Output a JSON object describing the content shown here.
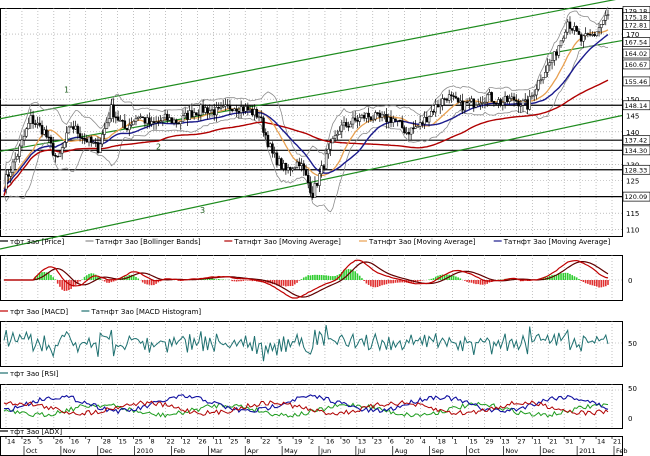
{
  "colors": {
    "background": "#ffffff",
    "frame": "#000000",
    "grid": "#9a9a9a",
    "price_candles": "#000000",
    "bollinger": "#8c8c8c",
    "ma_fast": "#e8a050",
    "ma_mid": "#1a1a8c",
    "ma_slow": "#b00000",
    "trend_channel": "#1e8c1e",
    "macd_line": "#c00000",
    "macd_signal": "#600000",
    "macd_hist_pos": "#2ecc2e",
    "macd_hist_neg": "#e03030",
    "rsi_line": "#1e7070",
    "adx_line": "#b00000",
    "di_plus": "#1e9c1e",
    "di_minus": "#1010a0",
    "level_box_fill": "#ffffff",
    "level_box_text": "#000000"
  },
  "chart_data": [
    {
      "type": "line",
      "panel": "price",
      "chart_kind": "candlestick with overlays",
      "y_axis_side": "right",
      "ylim": [
        108,
        178
      ],
      "y_ticks": [
        {
          "value": 110,
          "label": "110"
        },
        {
          "value": 115,
          "label": "115"
        },
        {
          "value": 125,
          "label": "125"
        },
        {
          "value": 130,
          "label": "130"
        },
        {
          "value": 140,
          "label": "140"
        },
        {
          "value": 145,
          "label": "145"
        },
        {
          "value": 150,
          "label": "150"
        },
        {
          "value": 170,
          "label": "170"
        }
      ],
      "level_boxes": [
        {
          "value": 179.18,
          "label": "179.18"
        },
        {
          "value": 175.18,
          "label": "175.18"
        },
        {
          "value": 172.81,
          "label": "172.81"
        },
        {
          "value": 167.54,
          "label": "167.54"
        },
        {
          "value": 164.02,
          "label": "164.02"
        },
        {
          "value": 160.67,
          "label": "160.67"
        },
        {
          "value": 155.46,
          "label": "155.46"
        },
        {
          "value": 148.14,
          "label": "148.14"
        },
        {
          "value": 137.42,
          "label": "137.42"
        },
        {
          "value": 134.3,
          "label": "134.30"
        },
        {
          "value": 128.33,
          "label": "128.33"
        },
        {
          "value": 120.09,
          "label": "120.09"
        }
      ],
      "horizontal_levels": [
        148.14,
        137.42,
        134.3,
        128.33,
        120.09
      ],
      "channel_labels": [
        "1",
        "2",
        "3"
      ],
      "close_series": [
        {
          "date": "Sep-14",
          "close": 124
        },
        {
          "date": "Sep-25",
          "close": 133
        },
        {
          "date": "Oct-05",
          "close": 144
        },
        {
          "date": "Oct-14",
          "close": 140
        },
        {
          "date": "Oct-26",
          "close": 131
        },
        {
          "date": "Nov-05",
          "close": 142
        },
        {
          "date": "Nov-16",
          "close": 138
        },
        {
          "date": "Nov-27",
          "close": 135
        },
        {
          "date": "Dec-07",
          "close": 147
        },
        {
          "date": "Dec-16",
          "close": 141
        },
        {
          "date": "Dec-28",
          "close": 145
        },
        {
          "date": "Jan-11",
          "close": 142
        },
        {
          "date": "Jan-25",
          "close": 144
        },
        {
          "date": "Feb-08",
          "close": 143
        },
        {
          "date": "Feb-18",
          "close": 146
        },
        {
          "date": "Mar-01",
          "close": 147
        },
        {
          "date": "Mar-15",
          "close": 146
        },
        {
          "date": "Mar-29",
          "close": 148
        },
        {
          "date": "Apr-12",
          "close": 147
        },
        {
          "date": "Apr-26",
          "close": 145
        },
        {
          "date": "May-06",
          "close": 133
        },
        {
          "date": "May-11",
          "close": 128
        },
        {
          "date": "May-17",
          "close": 131
        },
        {
          "date": "May-25",
          "close": 121
        },
        {
          "date": "Jun-07",
          "close": 132
        },
        {
          "date": "Jun-21",
          "close": 141
        },
        {
          "date": "Jul-02",
          "close": 143
        },
        {
          "date": "Jul-16",
          "close": 145
        },
        {
          "date": "Jul-30",
          "close": 144
        },
        {
          "date": "Aug-13",
          "close": 144
        },
        {
          "date": "Aug-23",
          "close": 140
        },
        {
          "date": "Sep-06",
          "close": 142
        },
        {
          "date": "Sep-20",
          "close": 147
        },
        {
          "date": "Oct-04",
          "close": 151
        },
        {
          "date": "Oct-18",
          "close": 148
        },
        {
          "date": "Nov-01",
          "close": 149
        },
        {
          "date": "Nov-15",
          "close": 151
        },
        {
          "date": "Nov-29",
          "close": 149
        },
        {
          "date": "Dec-13",
          "close": 150
        },
        {
          "date": "Dec-27",
          "close": 148
        },
        {
          "date": "Jan-11",
          "close": 157
        },
        {
          "date": "Jan-21",
          "close": 163
        },
        {
          "date": "Jan-31",
          "close": 174
        },
        {
          "date": "Feb-07",
          "close": 168
        },
        {
          "date": "Feb-14",
          "close": 170
        },
        {
          "date": "Feb-21",
          "close": 176
        }
      ],
      "legend": [
        {
          "label": "тфт Зао [Price]",
          "color": "#000000"
        },
        {
          "label": "Татнфт Зао [Bollinger Bands]",
          "color": "#8c8c8c"
        },
        {
          "label": "Татнфт Зао [Moving Average]",
          "color": "#b00000"
        },
        {
          "label": "Татнфт Зао [Moving Average]",
          "color": "#e8a050"
        },
        {
          "label": "Татнфт Зао [Moving Average]",
          "color": "#1a1a8c"
        }
      ]
    },
    {
      "type": "line",
      "panel": "macd",
      "y_ticks": [
        {
          "value": 0,
          "label": "0"
        }
      ],
      "legend": [
        {
          "label": "тфт Зао [MACD]",
          "color": "#c00000"
        },
        {
          "label": "Татнфт Зао [MACD Histogram]",
          "color": "#1e7070"
        }
      ]
    },
    {
      "type": "line",
      "panel": "rsi",
      "y_ticks": [
        {
          "value": 50,
          "label": "50"
        }
      ],
      "legend": [
        {
          "label": "тфт Зао [RSI]",
          "color": "#1e7070"
        }
      ]
    },
    {
      "type": "line",
      "panel": "adx",
      "y_ticks": [
        {
          "value": 50,
          "label": "50"
        },
        {
          "value": 0,
          "label": "0"
        }
      ],
      "legend": [
        {
          "label": "тфт Зао [ADX]",
          "color": "#000000"
        }
      ]
    }
  ],
  "x_axis": {
    "day_ticks": [
      "14",
      "25",
      "5",
      "26",
      "16",
      "7",
      "28",
      "15",
      "25",
      "8",
      "22",
      "12",
      "26",
      "11",
      "25",
      "8",
      "22",
      "5",
      "19",
      "2",
      "16",
      "30",
      "13",
      "23",
      "6",
      "20",
      "4",
      "18",
      "1",
      "15",
      "29",
      "13",
      "27",
      "11",
      "21",
      "31",
      "7",
      "14",
      "21"
    ],
    "month_labels": [
      "Oct",
      "Nov",
      "Dec",
      "2010",
      "Feb",
      "Mar",
      "Apr",
      "May",
      "Jun",
      "Jul",
      "Aug",
      "Sep",
      "Oct",
      "Nov",
      "Dec",
      "2011",
      "Feb"
    ]
  }
}
